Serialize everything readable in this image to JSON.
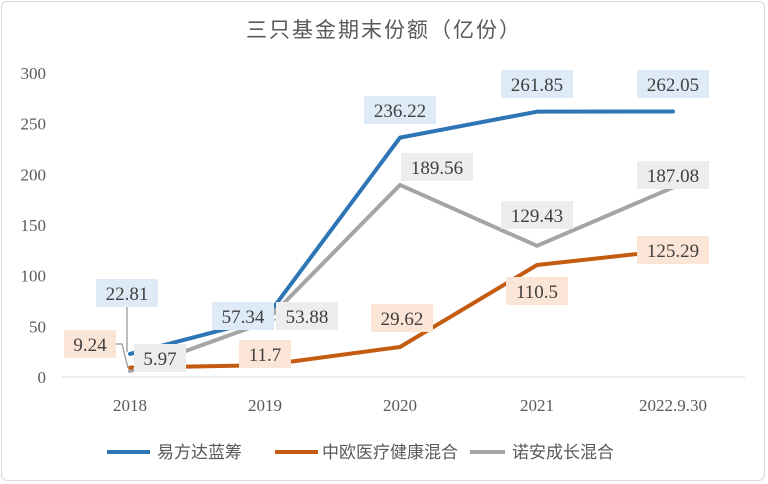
{
  "chart_data": {
    "type": "line",
    "title": "三只基金期末份额（亿份）",
    "categories": [
      "2018",
      "2019",
      "2020",
      "2021",
      "2022.9.30"
    ],
    "ylim": [
      0,
      300
    ],
    "yticks": [
      0,
      50,
      100,
      150,
      200,
      250,
      300
    ],
    "grid": false,
    "legend": "bottom",
    "series": [
      {
        "name": "易方达蓝筹",
        "color": "#2E75B6",
        "label_bg": "#DEEBF7",
        "values": [
          22.81,
          57.34,
          236.22,
          261.85,
          262.05
        ],
        "labels": [
          "22.81",
          "57.34",
          "236.22",
          "261.85",
          "262.05"
        ]
      },
      {
        "name": "中欧医疗健康混合",
        "color": "#C55A11",
        "label_bg": "#FBE5D6",
        "values": [
          9.24,
          11.7,
          29.62,
          110.5,
          125.29
        ],
        "labels": [
          "9.24",
          "11.7",
          "29.62",
          "110.5",
          "125.29"
        ]
      },
      {
        "name": "诺安成长混合",
        "color": "#A5A5A5",
        "label_bg": "#EDEDED",
        "values": [
          5.97,
          53.88,
          189.56,
          129.43,
          187.08
        ],
        "labels": [
          "5.97",
          "53.88",
          "189.56",
          "129.43",
          "187.08"
        ]
      }
    ]
  }
}
